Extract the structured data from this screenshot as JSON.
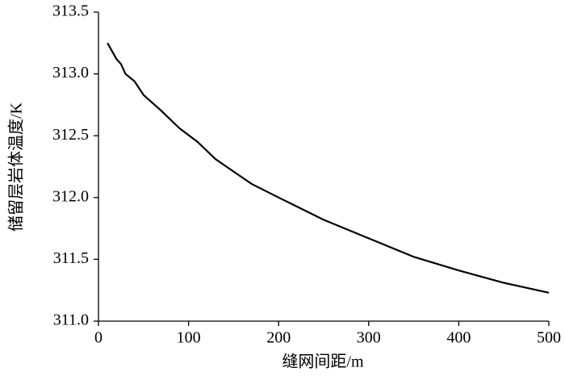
{
  "chart_data": {
    "type": "line",
    "x_label": "缝网间距/m",
    "y_label": "储留层岩体温度/K",
    "x": [
      10,
      20,
      25,
      30,
      40,
      50,
      70,
      90,
      110,
      120,
      130,
      150,
      170,
      200,
      250,
      300,
      350,
      400,
      450,
      500
    ],
    "series": [
      {
        "color": "#000000",
        "values": [
          313.25,
          313.12,
          313.08,
          313.0,
          312.94,
          312.83,
          312.7,
          312.56,
          312.45,
          312.38,
          312.31,
          312.21,
          312.11,
          312.0,
          311.82,
          311.67,
          311.52,
          311.41,
          311.31,
          311.23
        ]
      }
    ],
    "xlim": [
      0,
      500
    ],
    "xticks": [
      0,
      100,
      200,
      300,
      400,
      500
    ],
    "ylim": [
      311.0,
      313.5
    ],
    "yticks": [
      {
        "value": 311.0,
        "label": "311.0"
      },
      311.5,
      {
        "value": 312.0,
        "label": "312.0"
      },
      312.5,
      {
        "value": 313.0,
        "label": "313.0"
      },
      313.5
    ],
    "grid": false
  }
}
